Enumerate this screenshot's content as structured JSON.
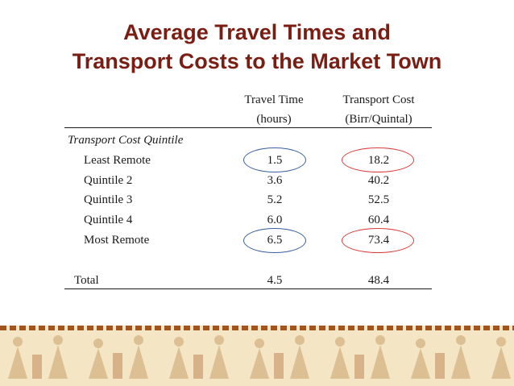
{
  "title": {
    "line1": "Average Travel Times and",
    "line2": "Transport Costs to the Market Town"
  },
  "columns": {
    "travel_time": {
      "line1": "Travel Time",
      "line2": "(hours)"
    },
    "transport_cost": {
      "line1": "Transport Cost",
      "line2": "(Birr/Quintal)"
    }
  },
  "section_label": "Transport Cost Quintile",
  "rows": [
    {
      "label": "Least Remote",
      "time": "1.5",
      "cost": "18.2"
    },
    {
      "label": "Quintile 2",
      "time": "3.6",
      "cost": "40.2"
    },
    {
      "label": "Quintile 3",
      "time": "5.2",
      "cost": "52.5"
    },
    {
      "label": "Quintile 4",
      "time": "6.0",
      "cost": "60.4"
    },
    {
      "label": "Most Remote",
      "time": "6.5",
      "cost": "73.4"
    }
  ],
  "total": {
    "label": "Total",
    "time": "4.5",
    "cost": "48.4"
  },
  "colors": {
    "title": "#7a1e14",
    "highlight_time": "#3a5f9e",
    "highlight_cost": "#d93a3a",
    "band": "#f4e6c4",
    "band_pattern": "#a3541e"
  }
}
